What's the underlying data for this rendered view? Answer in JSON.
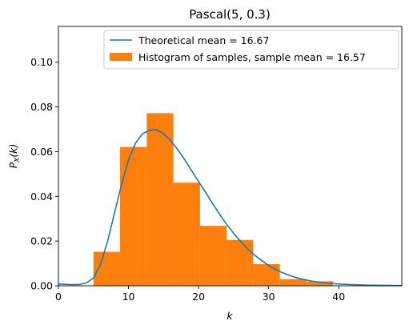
{
  "chart_data": {
    "type": "bar",
    "title": "Pascal(5, 0.3)",
    "xlabel": "k",
    "ylabel_base": "P",
    "ylabel_sub": "X",
    "ylabel_arg": "(k)",
    "xlim": [
      0,
      49
    ],
    "ylim": [
      0,
      0.116
    ],
    "xticks": [
      0,
      10,
      20,
      30,
      40
    ],
    "yticks": [
      "0.00",
      "0.02",
      "0.04",
      "0.06",
      "0.08",
      "0.10"
    ],
    "ytick_values": [
      0,
      0.02,
      0.04,
      0.06,
      0.08,
      0.1
    ],
    "grid": false,
    "legend_position": "top-right",
    "colors": {
      "line": "#1f77b4",
      "bars": "#ff7f0e"
    },
    "series": [
      {
        "name": "Theoretical mean = 16.67",
        "type": "line",
        "x": [
          0,
          2,
          3,
          4,
          5,
          6,
          7,
          8,
          9,
          10,
          11,
          12,
          13,
          14,
          15,
          16,
          17,
          18,
          19,
          20,
          21,
          22,
          23,
          24,
          25,
          26,
          27,
          28,
          29,
          30,
          31,
          32,
          33,
          34,
          35,
          36,
          37,
          38,
          39,
          40,
          42,
          44,
          46,
          49
        ],
        "y": [
          0.0008,
          0.0005,
          0.0006,
          0.0013,
          0.0035,
          0.0095,
          0.0198,
          0.0325,
          0.0452,
          0.0563,
          0.0638,
          0.068,
          0.0696,
          0.0698,
          0.068,
          0.065,
          0.061,
          0.0565,
          0.0515,
          0.0466,
          0.0418,
          0.0368,
          0.032,
          0.0275,
          0.0235,
          0.0198,
          0.0165,
          0.0137,
          0.0113,
          0.0091,
          0.0073,
          0.0058,
          0.0046,
          0.0036,
          0.0028,
          0.0022,
          0.0017,
          0.0013,
          0.001,
          0.0008,
          0.0005,
          0.0003,
          0.0002,
          0.0001
        ]
      },
      {
        "name": "Histogram of samples, sample mean = 16.57",
        "type": "histogram",
        "bins": [
          {
            "x0": 5.0,
            "x1": 8.8,
            "value": 0.0152
          },
          {
            "x0": 8.8,
            "x1": 12.6,
            "value": 0.0621
          },
          {
            "x0": 12.6,
            "x1": 16.4,
            "value": 0.0772
          },
          {
            "x0": 16.4,
            "x1": 20.2,
            "value": 0.0461
          },
          {
            "x0": 20.2,
            "x1": 24.0,
            "value": 0.0268
          },
          {
            "x0": 24.0,
            "x1": 27.8,
            "value": 0.0205
          },
          {
            "x0": 27.8,
            "x1": 31.6,
            "value": 0.0097
          },
          {
            "x0": 31.6,
            "x1": 35.4,
            "value": 0.003
          },
          {
            "x0": 35.4,
            "x1": 39.2,
            "value": 0.002
          }
        ]
      }
    ]
  }
}
